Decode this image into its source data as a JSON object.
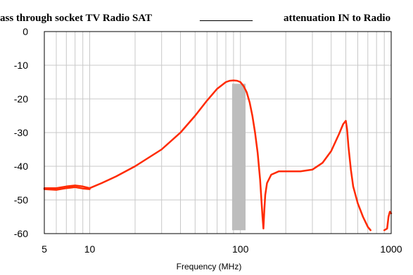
{
  "chart_data": {
    "type": "line",
    "title_left": "ass through socket TV Radio SAT",
    "title_right": "attenuation IN to Radio",
    "legend_swatch": "__________",
    "xlabel": "Frequency (MHz)",
    "ylabel": "",
    "x_scale": "log",
    "xlim": [
      5,
      1000
    ],
    "ylim": [
      -60,
      0
    ],
    "x_ticks": [
      {
        "value": 5,
        "label": "5"
      },
      {
        "value": 10,
        "label": "10"
      },
      {
        "value": 100,
        "label": "100"
      },
      {
        "value": 1000,
        "label": "1000"
      }
    ],
    "y_ticks": [
      {
        "value": 0,
        "label": "0"
      },
      {
        "value": -10,
        "label": "-10"
      },
      {
        "value": -20,
        "label": "-20"
      },
      {
        "value": -30,
        "label": "-30"
      },
      {
        "value": -40,
        "label": "-40"
      },
      {
        "value": -50,
        "label": "-50"
      },
      {
        "value": -60,
        "label": "-60"
      }
    ],
    "grid": true,
    "band": {
      "x_start": 88,
      "x_end": 108,
      "y_top": -15.5,
      "y_bottom": -59,
      "color": "#bdbdbd"
    },
    "series": [
      {
        "color": "#ff2a00",
        "x": [
          5,
          6,
          7,
          8,
          9,
          10,
          12,
          15,
          20,
          30,
          40,
          50,
          60,
          70,
          80,
          85,
          90,
          95,
          100,
          105,
          110,
          115,
          120,
          125,
          130,
          135,
          140,
          142,
          144,
          146,
          150,
          160,
          180,
          200,
          250,
          300,
          350,
          400,
          450,
          480,
          500,
          510,
          520,
          540,
          560,
          600,
          650,
          700,
          730
        ],
        "y": [
          -46.5,
          -46.5,
          -46.0,
          -45.7,
          -46.0,
          -46.5,
          -45.0,
          -43.0,
          -40.0,
          -35.0,
          -30.0,
          -25.0,
          -20.5,
          -17.0,
          -15.0,
          -14.6,
          -14.5,
          -14.6,
          -15.0,
          -16.2,
          -18.0,
          -21.0,
          -25.0,
          -30.0,
          -36.0,
          -44.0,
          -55.0,
          -58.5,
          -53.0,
          -48.5,
          -45.0,
          -42.5,
          -41.5,
          -41.5,
          -41.5,
          -41.0,
          -39.0,
          -35.5,
          -30.5,
          -27.5,
          -26.5,
          -29.0,
          -34.0,
          -41.0,
          -46.0,
          -51.0,
          -55.0,
          -58.0,
          -59.0
        ]
      },
      {
        "color": "#ff2a00",
        "x": [
          5,
          6,
          7,
          8,
          9,
          10
        ],
        "y": [
          -46.8,
          -47.0,
          -46.5,
          -46.2,
          -46.6,
          -46.8
        ]
      },
      {
        "color": "#ff2a00",
        "x": [
          900,
          940,
          960,
          980,
          1000
        ],
        "y": [
          -59,
          -58.5,
          -55.0,
          -53.5,
          -54.0
        ]
      }
    ]
  }
}
